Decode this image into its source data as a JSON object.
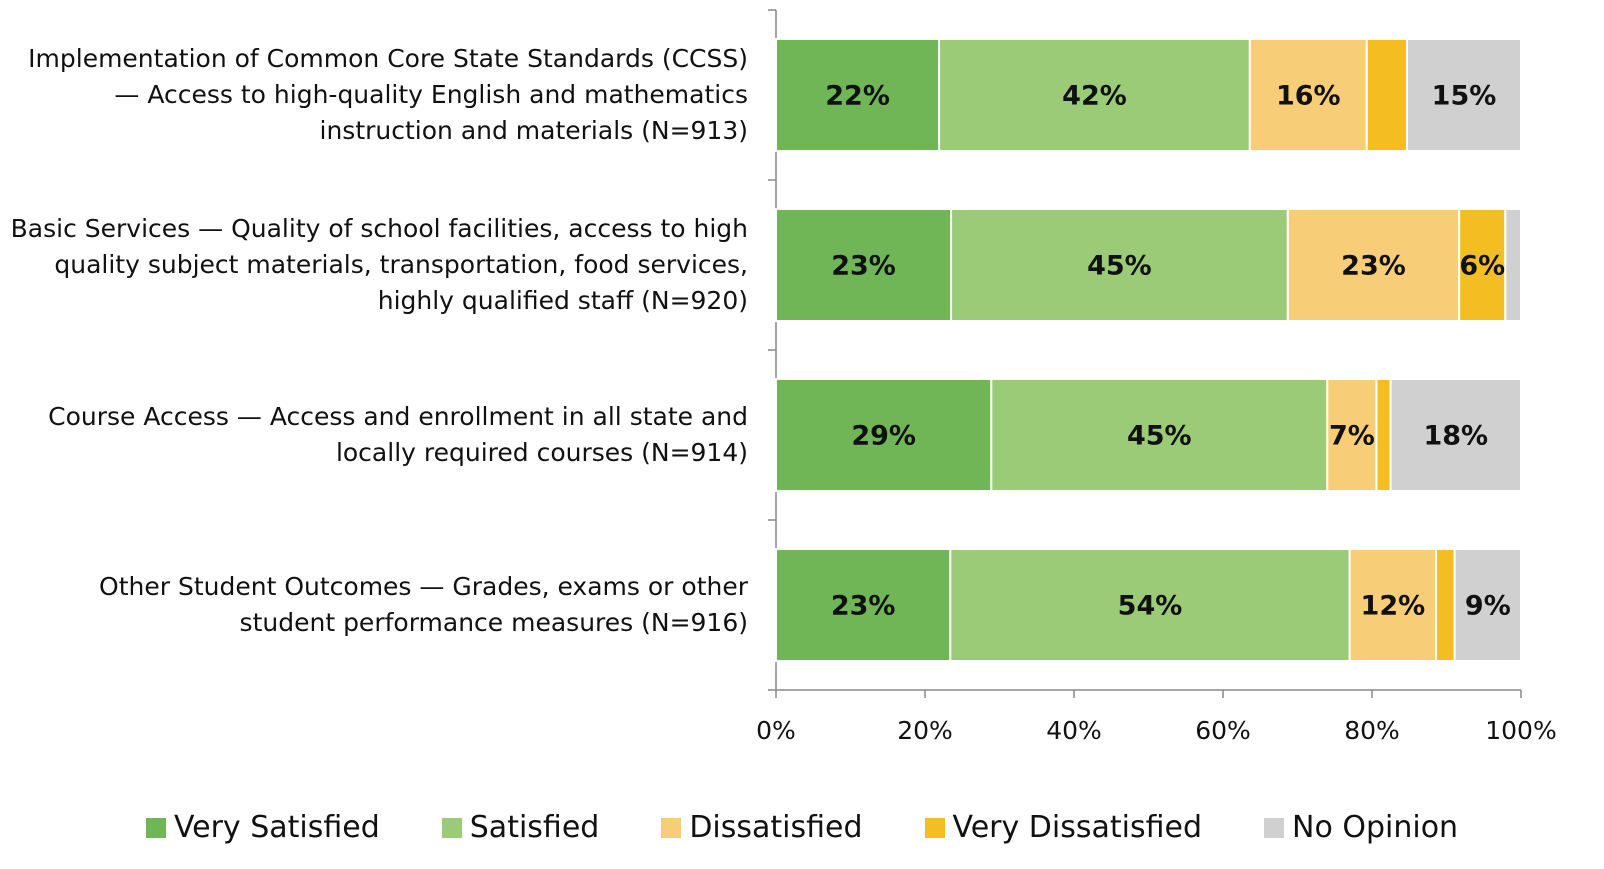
{
  "chart_data": {
    "type": "stacked_barh",
    "categories": [
      "Implementation of Common Core State Standards (CCSS) — Access to high-quality English and mathematics instruction and materials (N=913)",
      "Basic Services — Quality of school facilities, access to high quality subject materials, transportation, food services, highly qualified staff (N=920)",
      "Course Access — Access and enrollment in all state and locally required courses (N=914)",
      "Other Student Outcomes — Grades, exams or other student performance measures (N=916)"
    ],
    "series": [
      {
        "name": "Very Satisfied",
        "color": "#70b656",
        "values": [
          21.9,
          23.5,
          28.9,
          23.4
        ],
        "value_labels": [
          "22%",
          "23%",
          "29%",
          "23%"
        ]
      },
      {
        "name": "Satisfied",
        "color": "#9ccb78",
        "values": [
          41.7,
          45.2,
          45.1,
          53.6
        ],
        "value_labels": [
          "42%",
          "45%",
          "45%",
          "54%"
        ]
      },
      {
        "name": "Dissatisfied",
        "color": "#f8cd77",
        "values": [
          15.7,
          23.0,
          6.6,
          11.6
        ],
        "value_labels": [
          "16%",
          "23%",
          "7%",
          "12%"
        ]
      },
      {
        "name": "Very Dissatisfied",
        "color": "#f4be22",
        "values": [
          5.4,
          6.2,
          1.9,
          2.5
        ],
        "value_labels": [
          null,
          "6%",
          null,
          null
        ]
      },
      {
        "name": "No Opinion",
        "color": "#d0d0d0",
        "values": [
          15.3,
          2.1,
          17.5,
          8.9
        ],
        "value_labels": [
          "15%",
          null,
          "18%",
          "9%"
        ]
      }
    ],
    "xlim": [
      0,
      100
    ],
    "xticks": [
      {
        "value": 0,
        "label": "0%"
      },
      {
        "value": 20,
        "label": "20%"
      },
      {
        "value": 40,
        "label": "40%"
      },
      {
        "value": 60,
        "label": "60%"
      },
      {
        "value": 80,
        "label": "80%"
      },
      {
        "value": 100,
        "label": "100%"
      }
    ],
    "legend": "bottom"
  }
}
